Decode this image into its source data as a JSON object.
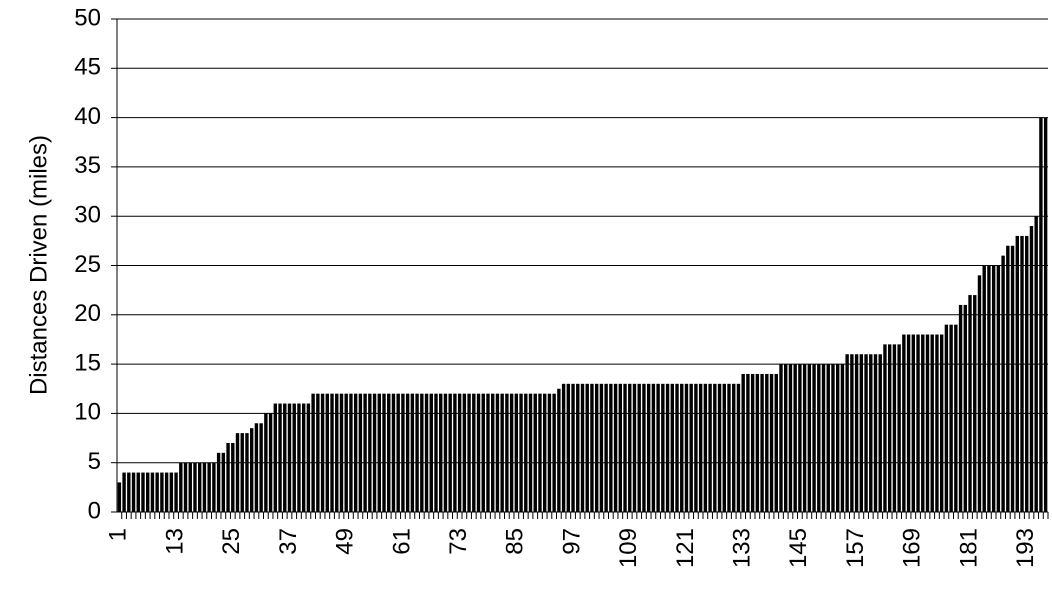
{
  "chart_data": {
    "type": "bar",
    "y_label": "Distances Driven (miles)",
    "color": "#000000",
    "grid": true,
    "ylim": [
      0,
      50
    ],
    "yticks": [
      0,
      5,
      10,
      15,
      20,
      25,
      30,
      35,
      40,
      45,
      50
    ],
    "categories": [
      "1",
      null,
      null,
      null,
      null,
      null,
      null,
      null,
      null,
      null,
      null,
      null,
      "13",
      null,
      null,
      null,
      null,
      null,
      null,
      null,
      null,
      null,
      null,
      null,
      "25",
      null,
      null,
      null,
      null,
      null,
      null,
      null,
      null,
      null,
      null,
      null,
      "37",
      null,
      null,
      null,
      null,
      null,
      null,
      null,
      null,
      null,
      null,
      null,
      "49",
      null,
      null,
      null,
      null,
      null,
      null,
      null,
      null,
      null,
      null,
      null,
      "61",
      null,
      null,
      null,
      null,
      null,
      null,
      null,
      null,
      null,
      null,
      null,
      "73",
      null,
      null,
      null,
      null,
      null,
      null,
      null,
      null,
      null,
      null,
      null,
      "85",
      null,
      null,
      null,
      null,
      null,
      null,
      null,
      null,
      null,
      null,
      null,
      "97",
      null,
      null,
      null,
      null,
      null,
      null,
      null,
      null,
      null,
      null,
      null,
      "109",
      null,
      null,
      null,
      null,
      null,
      null,
      null,
      null,
      null,
      null,
      null,
      "121",
      null,
      null,
      null,
      null,
      null,
      null,
      null,
      null,
      null,
      null,
      null,
      "133",
      null,
      null,
      null,
      null,
      null,
      null,
      null,
      null,
      null,
      null,
      null,
      "145",
      null,
      null,
      null,
      null,
      null,
      null,
      null,
      null,
      null,
      null,
      null,
      "157",
      null,
      null,
      null,
      null,
      null,
      null,
      null,
      null,
      null,
      null,
      null,
      "169",
      null,
      null,
      null,
      null,
      null,
      null,
      null,
      null,
      null,
      null,
      null,
      "181",
      null,
      null,
      null,
      null,
      null,
      null,
      null,
      null,
      null,
      null,
      null,
      "193",
      null,
      null,
      null,
      null
    ],
    "values": [
      3,
      4,
      4,
      4,
      4,
      4,
      4,
      4,
      4,
      4,
      4,
      4,
      4,
      5,
      5,
      5,
      5,
      5,
      5,
      5,
      5,
      6,
      6,
      7,
      7,
      8,
      8,
      8,
      8.5,
      9,
      9,
      10,
      10,
      11,
      11,
      11,
      11,
      11,
      11,
      11,
      11,
      12,
      12,
      12,
      12,
      12,
      12,
      12,
      12,
      12,
      12,
      12,
      12,
      12,
      12,
      12,
      12,
      12,
      12,
      12,
      12,
      12,
      12,
      12,
      12,
      12,
      12,
      12,
      12,
      12,
      12,
      12,
      12,
      12,
      12,
      12,
      12,
      12,
      12,
      12,
      12,
      12,
      12,
      12,
      12,
      12,
      12,
      12,
      12,
      12,
      12,
      12,
      12,
      12.5,
      13,
      13,
      13,
      13,
      13,
      13,
      13,
      13,
      13,
      13,
      13,
      13,
      13,
      13,
      13,
      13,
      13,
      13,
      13,
      13,
      13,
      13,
      13,
      13,
      13,
      13,
      13,
      13,
      13,
      13,
      13,
      13,
      13,
      13,
      13,
      13,
      13,
      13,
      14,
      14,
      14,
      14,
      14,
      14,
      14,
      14,
      15,
      15,
      15,
      15,
      15,
      15,
      15,
      15,
      15,
      15,
      15,
      15,
      15,
      15,
      16,
      16,
      16,
      16,
      16,
      16,
      16,
      16,
      17,
      17,
      17,
      17,
      18,
      18,
      18,
      18,
      18,
      18,
      18,
      18,
      18,
      19,
      19,
      19,
      21,
      21,
      22,
      22,
      24,
      25,
      25,
      25,
      25,
      26,
      27,
      27,
      28,
      28,
      28,
      29,
      30,
      40,
      40
    ]
  }
}
